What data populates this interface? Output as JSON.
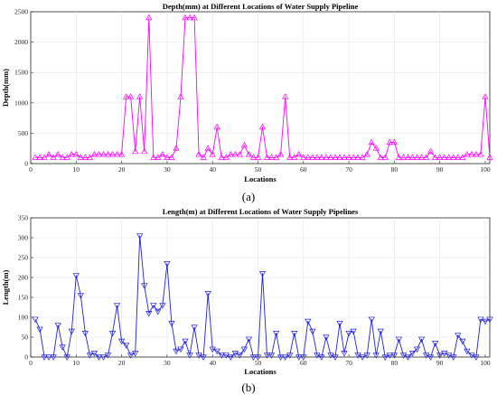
{
  "chart_data": [
    {
      "type": "line",
      "caption": "(a)",
      "title": "Depth(mm) at Different Locations of Water Supply Pipeline",
      "xlabel": "Locations",
      "ylabel": "Depth(mm)",
      "xlim": [
        0,
        101
      ],
      "ylim": [
        0,
        2500
      ],
      "xticks": [
        0,
        10,
        20,
        30,
        40,
        50,
        60,
        70,
        80,
        90,
        100
      ],
      "yticks": [
        0,
        500,
        1000,
        1500,
        2000,
        2500
      ],
      "grid": true,
      "color": "#ff00ff",
      "marker": "triangle-up",
      "x": [
        1,
        2,
        3,
        4,
        5,
        6,
        7,
        8,
        9,
        10,
        11,
        12,
        13,
        14,
        15,
        16,
        17,
        18,
        19,
        20,
        21,
        22,
        23,
        24,
        25,
        26,
        27,
        28,
        29,
        30,
        31,
        32,
        33,
        34,
        35,
        36,
        37,
        38,
        39,
        40,
        41,
        42,
        43,
        44,
        45,
        46,
        47,
        48,
        49,
        50,
        51,
        52,
        53,
        54,
        55,
        56,
        57,
        58,
        59,
        60,
        61,
        62,
        63,
        64,
        65,
        66,
        67,
        68,
        69,
        70,
        71,
        72,
        73,
        74,
        75,
        76,
        77,
        78,
        79,
        80,
        81,
        82,
        83,
        84,
        85,
        86,
        87,
        88,
        89,
        90,
        91,
        92,
        93,
        94,
        95,
        96,
        97,
        98,
        99,
        100,
        101
      ],
      "y": [
        100,
        100,
        100,
        150,
        100,
        150,
        100,
        100,
        150,
        150,
        100,
        100,
        100,
        150,
        150,
        150,
        150,
        150,
        150,
        150,
        1100,
        1100,
        200,
        1100,
        200,
        2400,
        100,
        100,
        150,
        100,
        100,
        250,
        1100,
        2400,
        2400,
        2400,
        150,
        100,
        250,
        150,
        600,
        100,
        100,
        150,
        150,
        150,
        300,
        150,
        100,
        100,
        600,
        100,
        100,
        100,
        150,
        1100,
        100,
        100,
        150,
        100,
        100,
        100,
        100,
        100,
        100,
        100,
        100,
        100,
        100,
        100,
        100,
        100,
        100,
        150,
        350,
        250,
        100,
        100,
        350,
        350,
        100,
        100,
        100,
        100,
        100,
        100,
        100,
        200,
        100,
        100,
        100,
        100,
        100,
        100,
        100,
        150,
        150,
        150,
        150,
        1100,
        100
      ]
    },
    {
      "type": "line",
      "caption": "(b)",
      "title": "Length(m) at Different Locations of Water Supply Pipelines",
      "xlabel": "Locations",
      "ylabel": "Length(m)",
      "xlim": [
        0,
        101
      ],
      "ylim": [
        0,
        350
      ],
      "xticks": [
        0,
        10,
        20,
        30,
        40,
        50,
        60,
        70,
        80,
        90,
        100
      ],
      "yticks": [
        0,
        50,
        100,
        150,
        200,
        250,
        300,
        350
      ],
      "grid": true,
      "color": "#1f1fdf",
      "marker": "triangle-down",
      "x": [
        1,
        2,
        3,
        4,
        5,
        6,
        7,
        8,
        9,
        10,
        11,
        12,
        13,
        14,
        15,
        16,
        17,
        18,
        19,
        20,
        21,
        22,
        23,
        24,
        25,
        26,
        27,
        28,
        29,
        30,
        31,
        32,
        33,
        34,
        35,
        36,
        37,
        38,
        39,
        40,
        41,
        42,
        43,
        44,
        45,
        46,
        47,
        48,
        49,
        50,
        51,
        52,
        53,
        54,
        55,
        56,
        57,
        58,
        59,
        60,
        61,
        62,
        63,
        64,
        65,
        66,
        67,
        68,
        69,
        70,
        71,
        72,
        73,
        74,
        75,
        76,
        77,
        78,
        79,
        80,
        81,
        82,
        83,
        84,
        85,
        86,
        87,
        88,
        89,
        90,
        91,
        92,
        93,
        94,
        95,
        96,
        97,
        98,
        99,
        100,
        101
      ],
      "y": [
        95,
        70,
        0,
        0,
        0,
        80,
        25,
        0,
        65,
        205,
        155,
        60,
        5,
        10,
        0,
        0,
        5,
        60,
        130,
        40,
        30,
        5,
        10,
        305,
        180,
        110,
        130,
        115,
        130,
        235,
        85,
        15,
        20,
        40,
        5,
        75,
        5,
        0,
        160,
        20,
        15,
        5,
        5,
        0,
        10,
        5,
        20,
        45,
        0,
        0,
        210,
        5,
        5,
        60,
        0,
        0,
        5,
        60,
        0,
        0,
        90,
        65,
        5,
        0,
        50,
        5,
        0,
        85,
        10,
        60,
        65,
        5,
        0,
        5,
        95,
        5,
        65,
        0,
        5,
        5,
        45,
        5,
        0,
        10,
        20,
        45,
        5,
        0,
        35,
        5,
        10,
        5,
        0,
        55,
        40,
        15,
        5,
        0,
        95,
        90,
        95
      ]
    }
  ]
}
